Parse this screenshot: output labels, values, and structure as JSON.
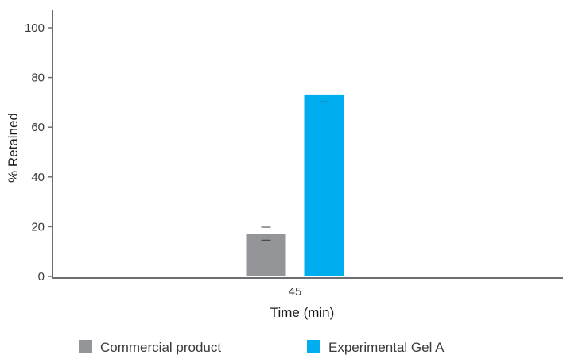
{
  "chart_data": {
    "type": "bar",
    "title": "",
    "xlabel": "Time (min)",
    "ylabel": "% Retained",
    "categories": [
      "45"
    ],
    "ylim": [
      0,
      100
    ],
    "yticks": [
      0,
      20,
      40,
      60,
      80,
      100
    ],
    "grid": false,
    "legend_position": "bottom",
    "series": [
      {
        "name": "Commercial product",
        "values": [
          17.2
        ],
        "error": [
          2.6
        ],
        "color": "#939598"
      },
      {
        "name": "Experimental Gel A",
        "values": [
          73.2
        ],
        "error": [
          3.0
        ],
        "color": "#00aeef"
      }
    ]
  }
}
